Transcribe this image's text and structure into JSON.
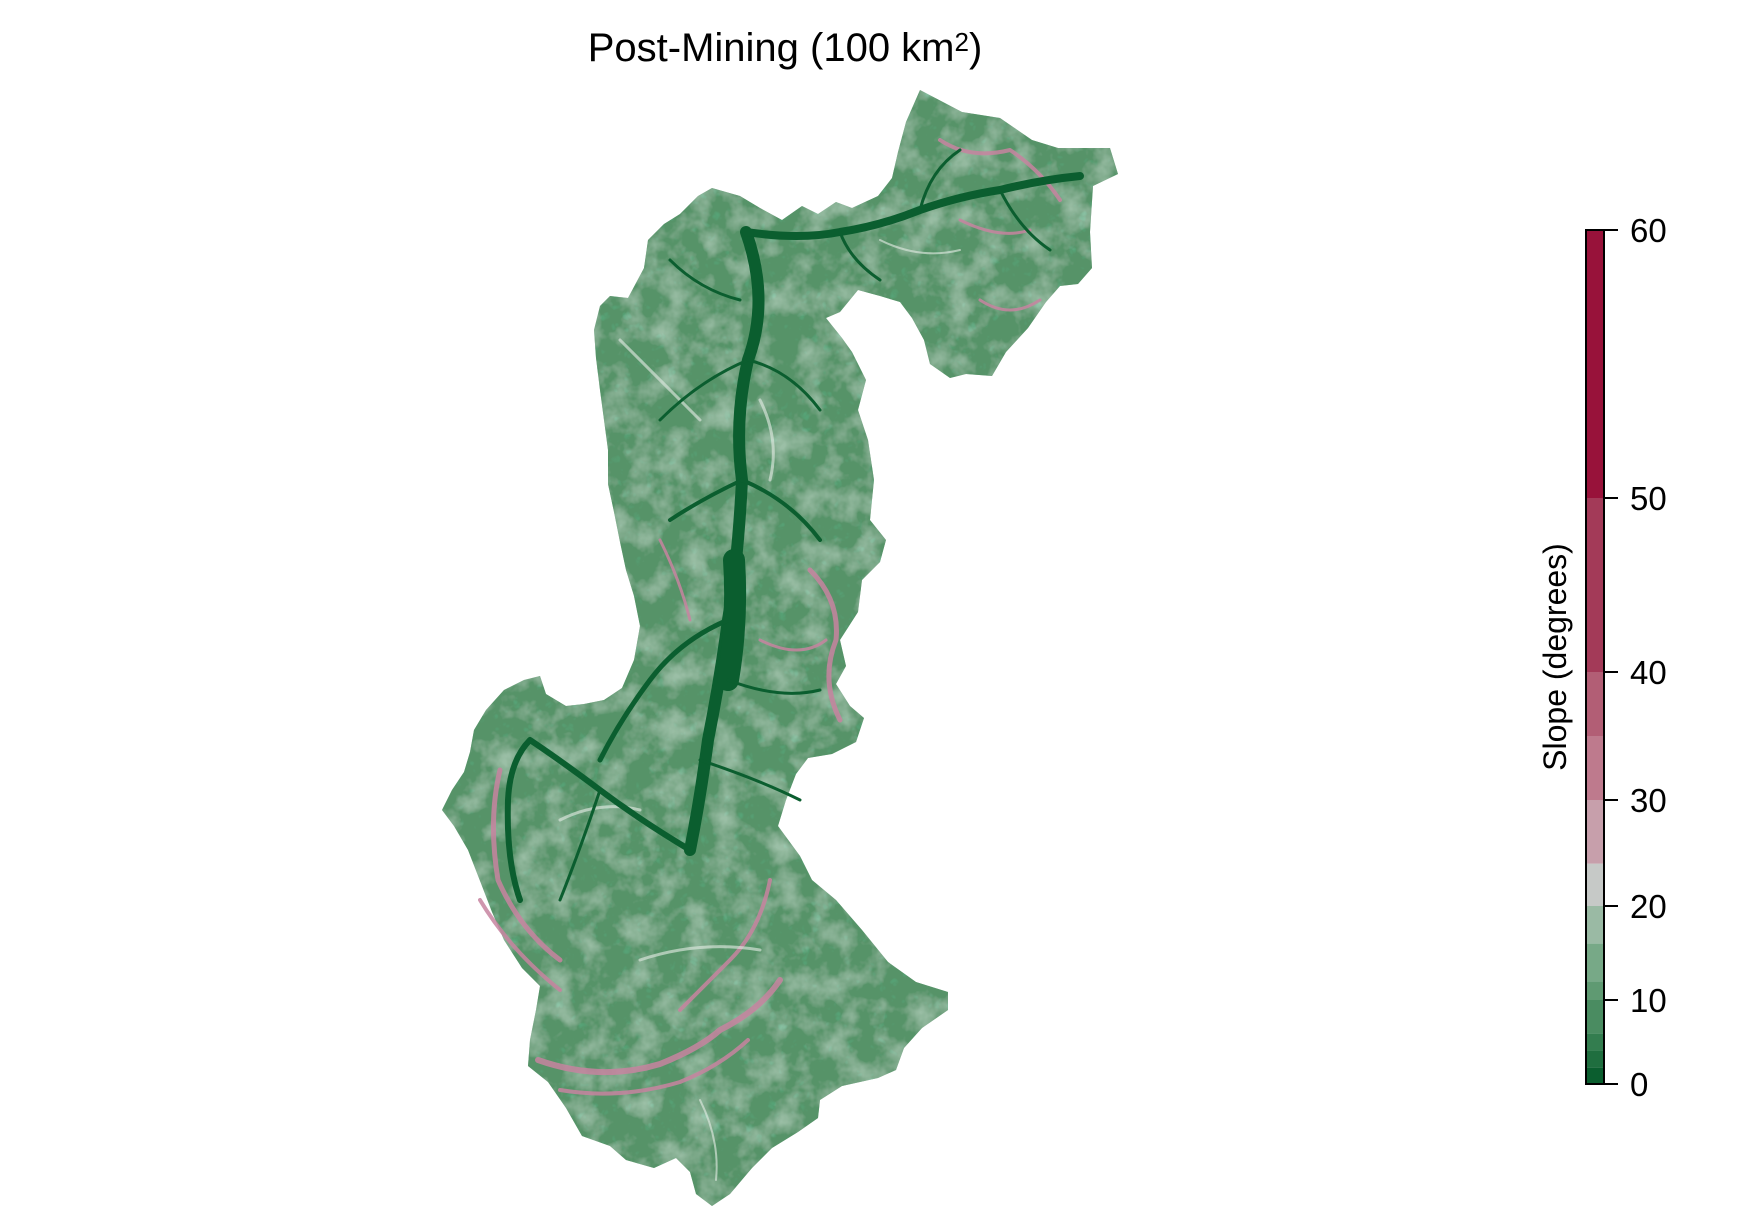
{
  "title": {
    "main": "Post-Mining (100 km",
    "superscript": "2",
    "suffix": ")"
  },
  "legend": {
    "label": "Slope (degrees)",
    "range": [
      0,
      60
    ],
    "ticks": [
      {
        "value": 0,
        "label": "0"
      },
      {
        "value": 10,
        "label": "10"
      },
      {
        "value": 20,
        "label": "20"
      },
      {
        "value": 30,
        "label": "30"
      },
      {
        "value": 40,
        "label": "40"
      },
      {
        "value": 50,
        "label": "50"
      },
      {
        "value": 60,
        "label": "60"
      }
    ],
    "breaks": [
      {
        "from": 0,
        "to": 2,
        "color": "#0b5e2f"
      },
      {
        "from": 2,
        "to": 4,
        "color": "#1f6e3f"
      },
      {
        "from": 4,
        "to": 6,
        "color": "#337d4f"
      },
      {
        "from": 6,
        "to": 10,
        "color": "#4a8c61"
      },
      {
        "from": 10,
        "to": 12,
        "color": "#5f9a72"
      },
      {
        "from": 12,
        "to": 16,
        "color": "#77a987"
      },
      {
        "from": 16,
        "to": 20,
        "color": "#9abaa4"
      },
      {
        "from": 20,
        "to": 24,
        "color": "#c6c9c7"
      },
      {
        "from": 24,
        "to": 30,
        "color": "#c79fab"
      },
      {
        "from": 30,
        "to": 35,
        "color": "#be7a8d"
      },
      {
        "from": 35,
        "to": 40,
        "color": "#b25e75"
      },
      {
        "from": 40,
        "to": 50,
        "color": "#a33a58"
      },
      {
        "from": 50,
        "to": 60,
        "color": "#98123a"
      }
    ]
  },
  "map": {
    "colors": {
      "base": "#5e9a70",
      "light": "#a8c7b0",
      "channel": "#0b5e2f",
      "steep": "#c784a0"
    }
  }
}
